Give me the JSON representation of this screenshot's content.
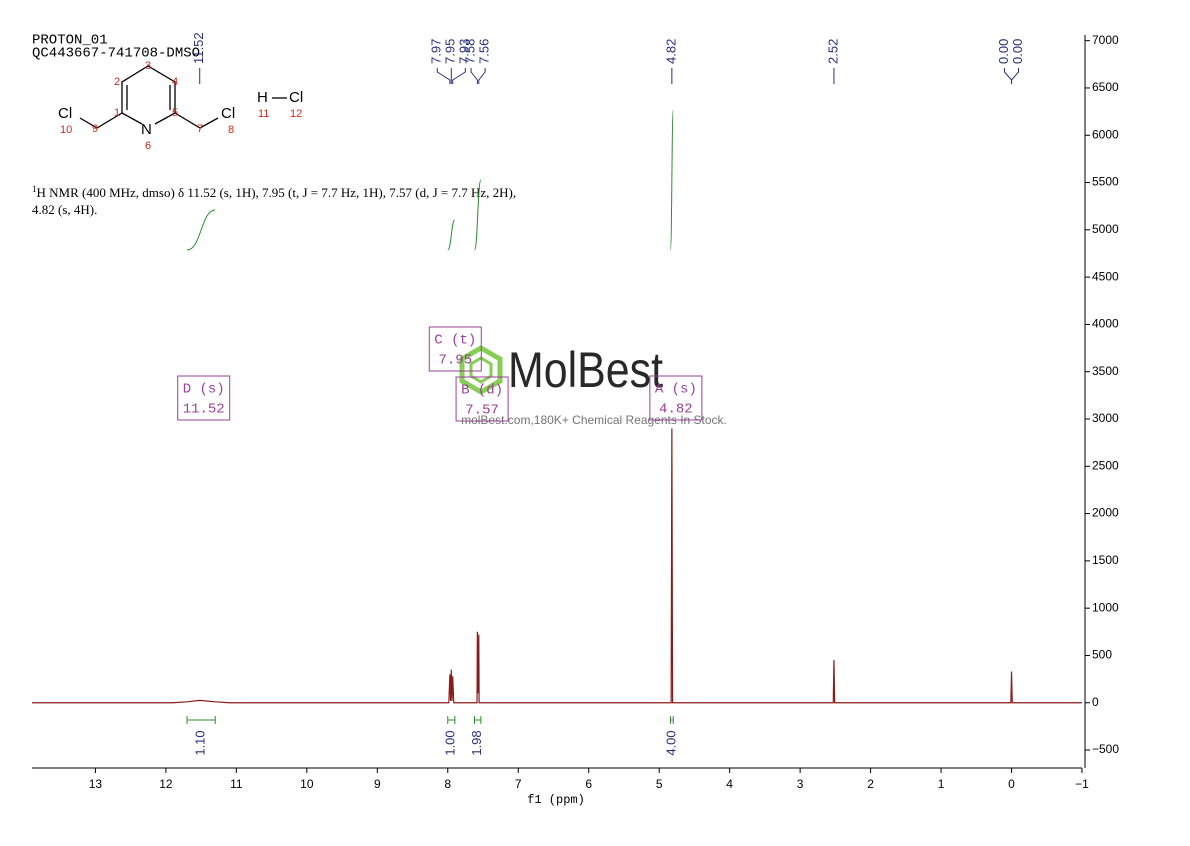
{
  "chart_data": {
    "type": "spectrum",
    "title": [
      "PROTON_01",
      "QC443667-741708-DMSO"
    ],
    "description": {
      "sup": "1",
      "lines": [
        "H NMR (400 MHz, dmso) δ 11.52 (s, 1H), 7.95 (t, J = 7.7 Hz, 1H), 7.57 (d, J = 7.7 Hz, 2H),",
        "4.82 (s, 4H)."
      ]
    },
    "structure": {
      "atoms": [
        "Cl",
        "N",
        "Cl",
        "H",
        "Cl"
      ],
      "numbers": [
        "1",
        "2",
        "3",
        "4",
        "5",
        "6",
        "7",
        "8",
        "9",
        "10",
        "11",
        "12"
      ]
    },
    "xlabel": "f1 (ppm)",
    "xlim": [
      13.9,
      -1
    ],
    "xticks": [
      13,
      12,
      11,
      10,
      9,
      8,
      7,
      6,
      5,
      4,
      3,
      2,
      1,
      0,
      {
        "value": -1,
        "label": "−1"
      }
    ],
    "ylim": [
      -690,
      7060
    ],
    "yticks": [
      {
        "value": -500,
        "label": "−500"
      },
      0,
      500,
      1000,
      1500,
      2000,
      2500,
      3000,
      3500,
      4000,
      4500,
      5000,
      5500,
      6000,
      6500,
      7000
    ],
    "series": [
      {
        "name": "spectrum",
        "color": "#8b1a1a",
        "x": [
          13.9,
          11.9,
          11.7,
          11.52,
          11.3,
          11.1,
          8.05,
          7.985,
          7.97,
          7.96,
          7.95,
          7.94,
          7.93,
          7.915,
          7.6,
          7.585,
          7.58,
          7.57,
          7.56,
          7.555,
          4.86,
          4.83,
          4.82,
          4.81,
          4.78,
          2.56,
          2.53,
          2.52,
          2.51,
          2.48,
          0.04,
          0.01,
          0.0,
          -0.01,
          -0.04,
          -1
        ],
        "values": [
          0,
          0,
          10,
          25,
          10,
          0,
          0,
          0,
          300,
          20,
          350,
          20,
          280,
          0,
          0,
          0,
          750,
          100,
          720,
          0,
          0,
          0,
          2900,
          0,
          0,
          0,
          0,
          450,
          0,
          0,
          0,
          0,
          330,
          0,
          0,
          0
        ]
      }
    ],
    "peaks": [
      11.52,
      7.97,
      7.95,
      7.93,
      7.58,
      7.56,
      4.82,
      2.52,
      {
        "value": 0,
        "label": "0.00"
      },
      {
        "value": 0,
        "label": "0.00"
      }
    ],
    "multiplets": [
      {
        "name": "D (s)",
        "shift": 11.52
      },
      {
        "name": "C (t)",
        "shift": 7.95
      },
      {
        "name": "B (d)",
        "shift": 7.57
      },
      {
        "name": "A (s)",
        "shift": 4.82
      }
    ],
    "integrals": [
      {
        "from": 11.7,
        "to": 11.3,
        "value": {
          "value": 1.1,
          "label": "1.10"
        }
      },
      {
        "from": 8.0,
        "to": 7.9,
        "value": {
          "value": 1,
          "label": "1.00"
        }
      },
      {
        "from": 7.62,
        "to": 7.53,
        "value": 1.98
      },
      {
        "from": 4.84,
        "to": 4.8,
        "value": {
          "value": 4,
          "label": "4.00"
        }
      }
    ],
    "watermark": [
      "MolBest",
      "molBest.com,180K+ Chemical Reagents In Stock."
    ]
  }
}
